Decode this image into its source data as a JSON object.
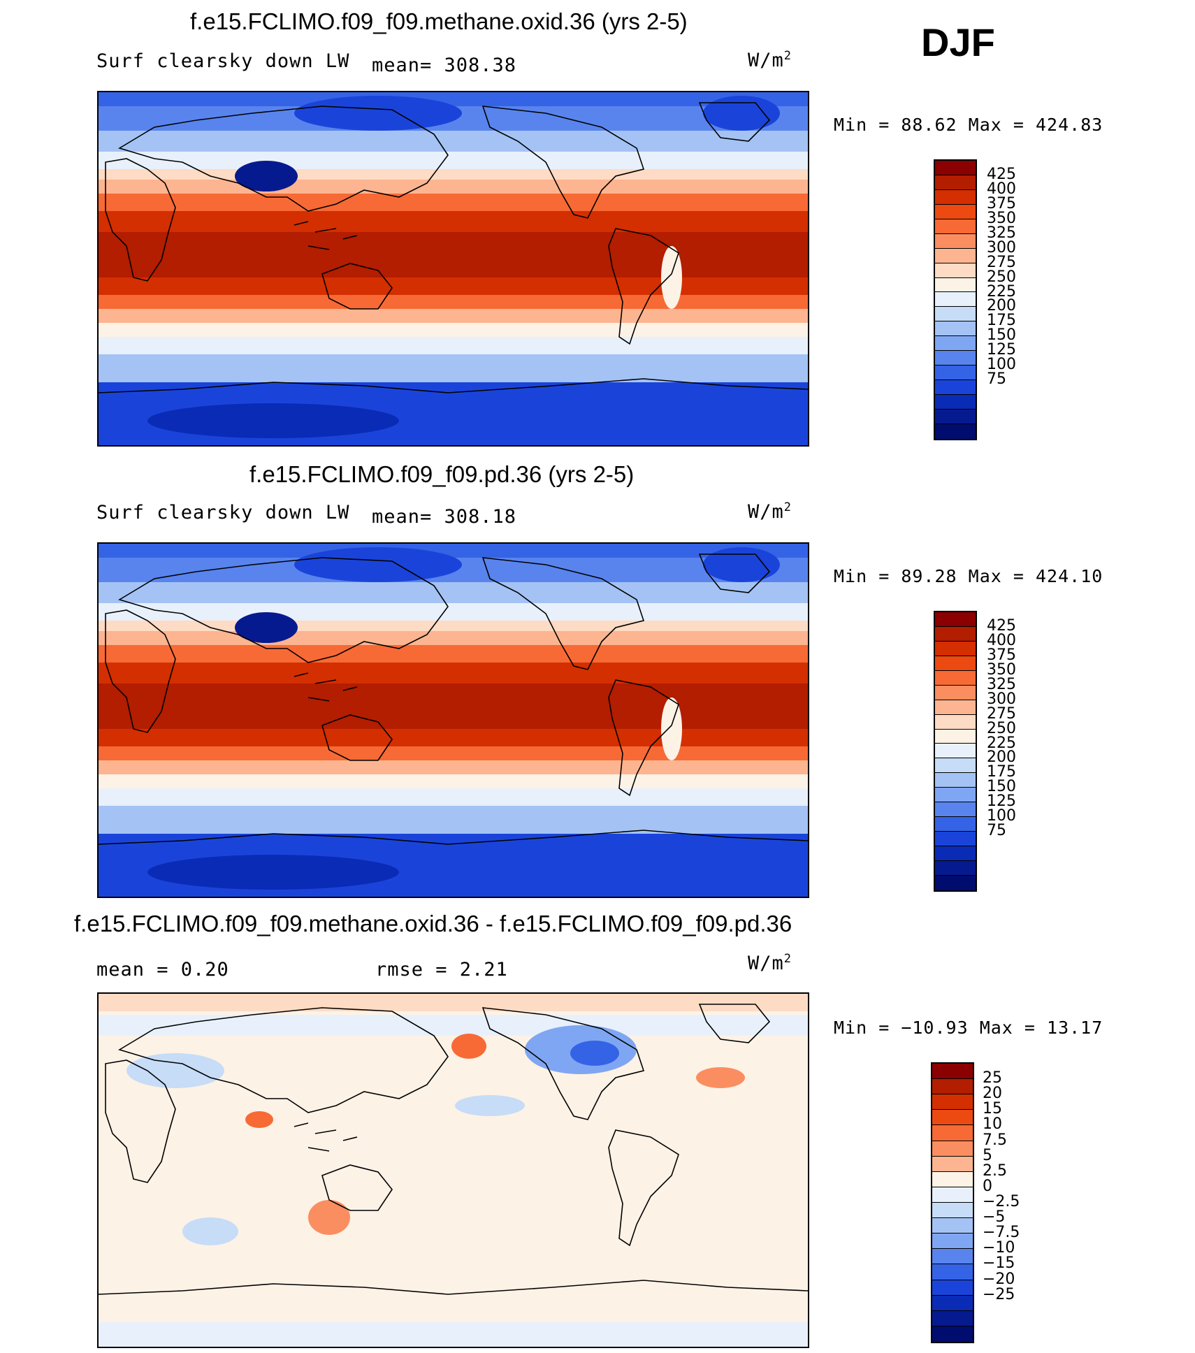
{
  "season": "DJF",
  "colors": {
    "abs": [
      "#8b0000",
      "#b31d00",
      "#d42f00",
      "#ec4a10",
      "#f76a35",
      "#fa8e60",
      "#fcb590",
      "#fddbc4",
      "#fdf2e6",
      "#e8f0fb",
      "#c6dcf7",
      "#a4c3f4",
      "#7fa6f2",
      "#5984ee",
      "#3563e6",
      "#1a44d9",
      "#0a2bb6",
      "#061a8f",
      "#000c6e"
    ],
    "diff": [
      "#8b0000",
      "#b31d00",
      "#d42f00",
      "#ec4a10",
      "#f76a35",
      "#fa8e60",
      "#fcb590",
      "#fdf2e6",
      "#e8f0fb",
      "#c6dcf7",
      "#a4c3f4",
      "#7fa6f2",
      "#5984ee",
      "#3563e6",
      "#1a44d9",
      "#0a2bb6",
      "#061a8f",
      "#000c6e"
    ],
    "coast": "#000000"
  },
  "panels": [
    {
      "title": "f.e15.FCLIMO.f09_f09.methane.oxid.36 (yrs 2-5)",
      "left_label": "Surf clearsky down LW",
      "mid_label": "mean= 308.38",
      "units_base": "W/m",
      "units_exp": "2",
      "min_label": "Min =",
      "min_value": "88.62",
      "max_label": "Max =",
      "max_value": "424.83",
      "kind": "abs",
      "colorbar_ticks": [
        "425",
        "400",
        "375",
        "350",
        "325",
        "300",
        "275",
        "250",
        "225",
        "200",
        "175",
        "150",
        "125",
        "100",
        "75"
      ]
    },
    {
      "title": "f.e15.FCLIMO.f09_f09.pd.36 (yrs 2-5)",
      "left_label": "Surf clearsky down LW",
      "mid_label": "mean= 308.18",
      "units_base": "W/m",
      "units_exp": "2",
      "min_label": "Min =",
      "min_value": "89.28",
      "max_label": "Max =",
      "max_value": "424.10",
      "kind": "abs",
      "colorbar_ticks": [
        "425",
        "400",
        "375",
        "350",
        "325",
        "300",
        "275",
        "250",
        "225",
        "200",
        "175",
        "150",
        "125",
        "100",
        "75"
      ]
    },
    {
      "title": "f.e15.FCLIMO.f09_f09.methane.oxid.36 - f.e15.FCLIMO.f09_f09.pd.36",
      "left_label": "mean =    0.20",
      "mid_label": "rmse =    2.21",
      "units_base": "W/m",
      "units_exp": "2",
      "min_label": "Min =",
      "min_value": "−10.93",
      "max_label": "Max =",
      "max_value": "13.17",
      "kind": "diff",
      "colorbar_ticks": [
        "25",
        "20",
        "15",
        "10",
        "7.5",
        "5",
        "2.5",
        "0",
        "−2.5",
        "−5",
        "−7.5",
        "−10",
        "−15",
        "−20",
        "−25"
      ]
    }
  ]
}
